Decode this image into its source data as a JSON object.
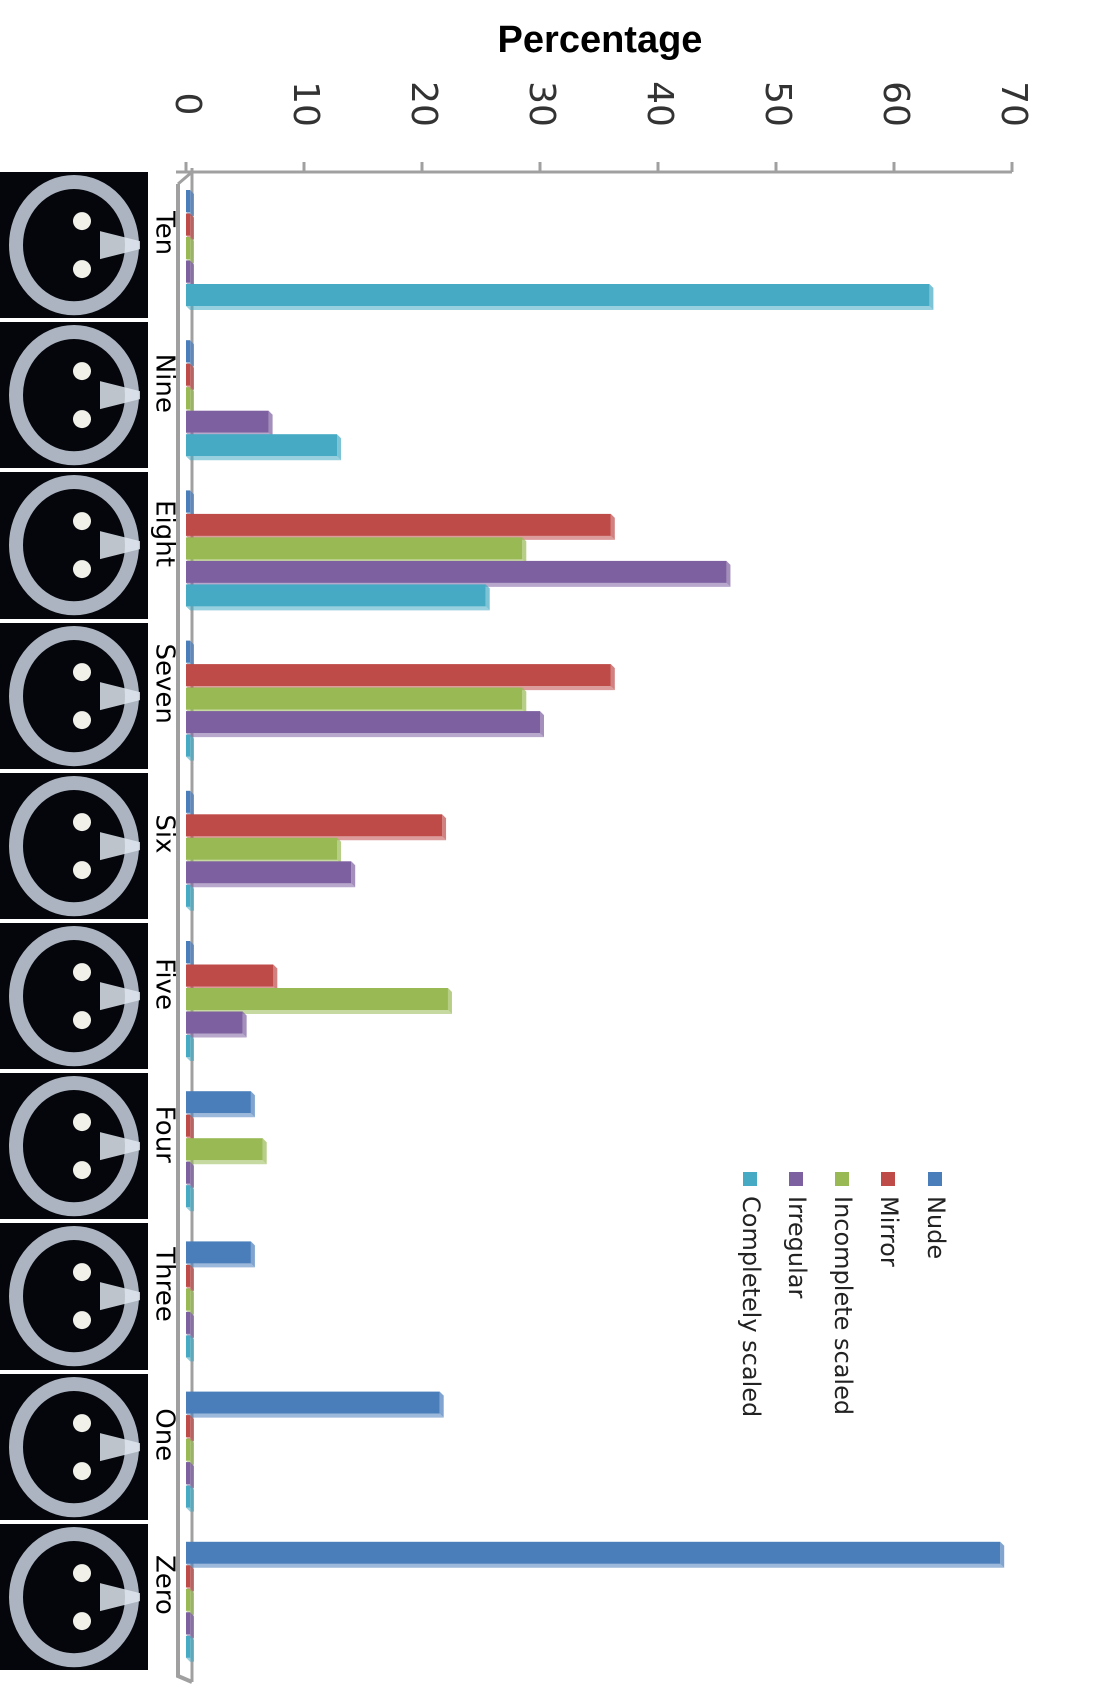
{
  "chart_data": {
    "type": "bar",
    "orientation": "horizontal",
    "title": "",
    "xlabel": "Percentage",
    "ylabel": "",
    "xlim": [
      0,
      70
    ],
    "xticks": [
      0,
      10,
      20,
      30,
      40,
      50,
      60,
      70
    ],
    "tick_label_rotation": "90deg",
    "grid": false,
    "legend_position": "right, middle",
    "categories": [
      "Ten",
      "Nine",
      "Eight",
      "Seven",
      "Six",
      "Five",
      "Four",
      "Three",
      "One",
      "Zero"
    ],
    "series": [
      {
        "name": "Nude",
        "color": "#4a7ebb",
        "values": [
          0,
          0,
          0,
          0,
          0,
          0,
          5.5,
          5.5,
          21.5,
          69
        ]
      },
      {
        "name": "Mirror",
        "color": "#be4b48",
        "values": [
          0,
          0,
          36,
          36,
          21.7,
          7.4,
          0,
          0,
          0,
          0
        ]
      },
      {
        "name": "Incomplete scaled",
        "color": "#98b954",
        "values": [
          0,
          0,
          28.5,
          28.5,
          12.8,
          22.2,
          6.5,
          0,
          0,
          0
        ]
      },
      {
        "name": "Irregular",
        "color": "#7d60a0",
        "values": [
          0,
          7,
          45.8,
          30,
          14,
          4.8,
          0,
          0,
          0,
          0
        ]
      },
      {
        "name": "Completely scaled",
        "color": "#46aac5",
        "values": [
          63,
          12.8,
          25.4,
          0,
          0,
          0,
          0,
          0,
          0,
          0
        ]
      }
    ],
    "category_images": [
      {
        "category": "Ten",
        "image": "scale-specimen-photo"
      },
      {
        "category": "Nine",
        "image": "scale-specimen-photo"
      },
      {
        "category": "Eight",
        "image": "scale-specimen-photo"
      },
      {
        "category": "Seven",
        "image": "scale-specimen-photo"
      },
      {
        "category": "Six",
        "image": "scale-specimen-photo"
      },
      {
        "category": "Five",
        "image": "scale-specimen-photo"
      },
      {
        "category": "Four",
        "image": "scale-specimen-photo"
      },
      {
        "category": "Three",
        "image": "scale-specimen-photo"
      },
      {
        "category": "One",
        "image": "scale-specimen-photo"
      },
      {
        "category": "Zero",
        "image": "scale-specimen-photo"
      }
    ]
  }
}
